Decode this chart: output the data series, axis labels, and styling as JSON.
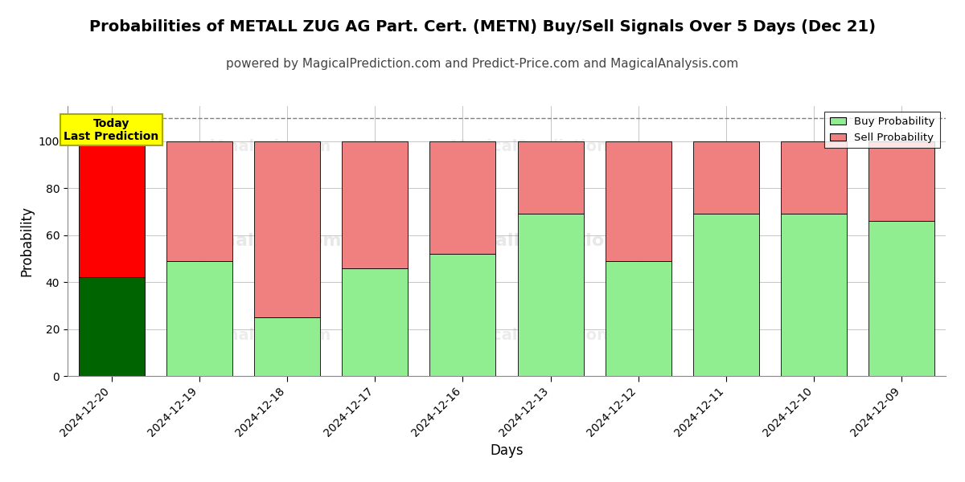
{
  "title": "Probabilities of METALL ZUG AG Part. Cert. (METN) Buy/Sell Signals Over 5 Days (Dec 21)",
  "subtitle": "powered by MagicalPrediction.com and Predict-Price.com and MagicalAnalysis.com",
  "xlabel": "Days",
  "ylabel": "Probability",
  "categories": [
    "2024-12-20",
    "2024-12-19",
    "2024-12-18",
    "2024-12-17",
    "2024-12-16",
    "2024-12-13",
    "2024-12-12",
    "2024-12-11",
    "2024-12-10",
    "2024-12-09"
  ],
  "buy_values": [
    42,
    49,
    25,
    46,
    52,
    69,
    49,
    69,
    69,
    66
  ],
  "sell_values": [
    58,
    51,
    75,
    54,
    48,
    31,
    51,
    31,
    31,
    34
  ],
  "today_index": 0,
  "buy_color_today": "#006400",
  "sell_color_today": "#ff0000",
  "buy_color_normal": "#90EE90",
  "sell_color_normal": "#f08080",
  "ylim": [
    0,
    115
  ],
  "yticks": [
    0,
    20,
    40,
    60,
    80,
    100
  ],
  "dashed_line_y": 110,
  "today_label_text": "Today\nLast Prediction",
  "today_label_bg": "#ffff00",
  "legend_buy": "Buy Probability",
  "legend_sell": "Sell Probability",
  "watermark_lines": [
    "calAnalysis.com",
    "MagicalPrediction.com"
  ],
  "title_fontsize": 14,
  "subtitle_fontsize": 11,
  "axis_label_fontsize": 12,
  "tick_fontsize": 10,
  "background_color": "#ffffff",
  "grid_color": "#bbbbbb"
}
